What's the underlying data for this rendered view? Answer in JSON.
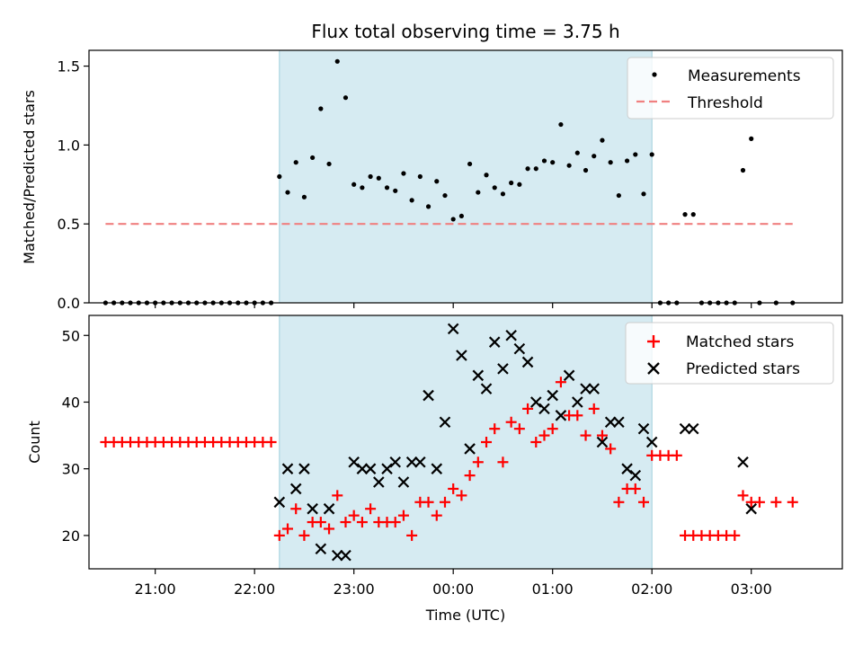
{
  "chart_data": [
    {
      "type": "scatter",
      "title": "Flux total observing time = 3.75 h",
      "xlabel": "",
      "ylabel": "Matched/Predicted stars",
      "ylim": [
        0,
        1.6
      ],
      "yticks": [
        "0.0",
        "0.5",
        "1.0",
        "1.5"
      ],
      "legend_position": "top-right",
      "shaded_interval": [
        "22:15",
        "02:00"
      ],
      "shade_color": "#add8e6",
      "series": [
        {
          "name": "Measurements",
          "marker": "dot",
          "color": "#000000",
          "points": [
            [
              "20:30",
              0
            ],
            [
              "20:35",
              0
            ],
            [
              "20:40",
              0
            ],
            [
              "20:45",
              0
            ],
            [
              "20:50",
              0
            ],
            [
              "20:55",
              0
            ],
            [
              "21:00",
              0
            ],
            [
              "21:05",
              0
            ],
            [
              "21:10",
              0
            ],
            [
              "21:15",
              0
            ],
            [
              "21:20",
              0
            ],
            [
              "21:25",
              0
            ],
            [
              "21:30",
              0
            ],
            [
              "21:35",
              0
            ],
            [
              "21:40",
              0
            ],
            [
              "21:45",
              0
            ],
            [
              "21:50",
              0
            ],
            [
              "21:55",
              0
            ],
            [
              "22:00",
              0
            ],
            [
              "22:05",
              0
            ],
            [
              "22:10",
              0
            ],
            [
              "22:15",
              0.8
            ],
            [
              "22:20",
              0.7
            ],
            [
              "22:25",
              0.89
            ],
            [
              "22:30",
              0.67
            ],
            [
              "22:35",
              0.92
            ],
            [
              "22:40",
              1.23
            ],
            [
              "22:45",
              0.88
            ],
            [
              "22:50",
              1.53
            ],
            [
              "22:55",
              1.3
            ],
            [
              "23:00",
              0.75
            ],
            [
              "23:05",
              0.73
            ],
            [
              "23:10",
              0.8
            ],
            [
              "23:15",
              0.79
            ],
            [
              "23:20",
              0.73
            ],
            [
              "23:25",
              0.71
            ],
            [
              "23:30",
              0.82
            ],
            [
              "23:35",
              0.65
            ],
            [
              "23:40",
              0.8
            ],
            [
              "23:45",
              0.61
            ],
            [
              "23:50",
              0.77
            ],
            [
              "23:55",
              0.68
            ],
            [
              "00:00",
              0.53
            ],
            [
              "00:05",
              0.55
            ],
            [
              "00:10",
              0.88
            ],
            [
              "00:15",
              0.7
            ],
            [
              "00:20",
              0.81
            ],
            [
              "00:25",
              0.73
            ],
            [
              "00:30",
              0.69
            ],
            [
              "00:35",
              0.76
            ],
            [
              "00:40",
              0.75
            ],
            [
              "00:45",
              0.85
            ],
            [
              "00:50",
              0.85
            ],
            [
              "00:55",
              0.9
            ],
            [
              "01:00",
              0.89
            ],
            [
              "01:05",
              1.13
            ],
            [
              "01:10",
              0.87
            ],
            [
              "01:15",
              0.95
            ],
            [
              "01:20",
              0.84
            ],
            [
              "01:25",
              0.93
            ],
            [
              "01:30",
              1.03
            ],
            [
              "01:35",
              0.89
            ],
            [
              "01:40",
              0.68
            ],
            [
              "01:45",
              0.9
            ],
            [
              "01:50",
              0.94
            ],
            [
              "01:55",
              0.69
            ],
            [
              "02:00",
              0.94
            ],
            [
              "02:05",
              0
            ],
            [
              "02:10",
              0
            ],
            [
              "02:15",
              0
            ],
            [
              "02:20",
              0.56
            ],
            [
              "02:25",
              0.56
            ],
            [
              "02:30",
              0
            ],
            [
              "02:35",
              0
            ],
            [
              "02:40",
              0
            ],
            [
              "02:45",
              0
            ],
            [
              "02:50",
              0
            ],
            [
              "02:55",
              0.84
            ],
            [
              "03:00",
              1.04
            ],
            [
              "03:05",
              0
            ],
            [
              "03:15",
              0
            ],
            [
              "03:25",
              0
            ]
          ]
        },
        {
          "name": "Threshold",
          "marker": "dashed-line",
          "color": "#f08080",
          "points": [
            [
              "20:30",
              0.5
            ],
            [
              "03:25",
              0.5
            ]
          ]
        }
      ]
    },
    {
      "type": "scatter",
      "title": "",
      "xlabel": "Time (UTC)",
      "ylabel": "Count",
      "ylim": [
        15,
        53
      ],
      "yticks": [
        "20",
        "30",
        "40",
        "50"
      ],
      "xticks": [
        "21:00",
        "22:00",
        "23:00",
        "00:00",
        "01:00",
        "02:00",
        "03:00"
      ],
      "legend_position": "top-right",
      "series": [
        {
          "name": "Matched stars",
          "marker": "plus",
          "color": "#ff0000",
          "points": [
            [
              "20:30",
              34
            ],
            [
              "20:35",
              34
            ],
            [
              "20:40",
              34
            ],
            [
              "20:45",
              34
            ],
            [
              "20:50",
              34
            ],
            [
              "20:55",
              34
            ],
            [
              "21:00",
              34
            ],
            [
              "21:05",
              34
            ],
            [
              "21:10",
              34
            ],
            [
              "21:15",
              34
            ],
            [
              "21:20",
              34
            ],
            [
              "21:25",
              34
            ],
            [
              "21:30",
              34
            ],
            [
              "21:35",
              34
            ],
            [
              "21:40",
              34
            ],
            [
              "21:45",
              34
            ],
            [
              "21:50",
              34
            ],
            [
              "21:55",
              34
            ],
            [
              "22:00",
              34
            ],
            [
              "22:05",
              34
            ],
            [
              "22:10",
              34
            ],
            [
              "22:15",
              20
            ],
            [
              "22:20",
              21
            ],
            [
              "22:25",
              24
            ],
            [
              "22:30",
              20
            ],
            [
              "22:35",
              22
            ],
            [
              "22:40",
              22
            ],
            [
              "22:45",
              21
            ],
            [
              "22:50",
              26
            ],
            [
              "22:55",
              22
            ],
            [
              "23:00",
              23
            ],
            [
              "23:05",
              22
            ],
            [
              "23:10",
              24
            ],
            [
              "23:15",
              22
            ],
            [
              "23:20",
              22
            ],
            [
              "23:25",
              22
            ],
            [
              "23:30",
              23
            ],
            [
              "23:35",
              20
            ],
            [
              "23:40",
              25
            ],
            [
              "23:45",
              25
            ],
            [
              "23:50",
              23
            ],
            [
              "23:55",
              25
            ],
            [
              "00:00",
              27
            ],
            [
              "00:05",
              26
            ],
            [
              "00:10",
              29
            ],
            [
              "00:15",
              31
            ],
            [
              "00:20",
              34
            ],
            [
              "00:25",
              36
            ],
            [
              "00:30",
              31
            ],
            [
              "00:35",
              37
            ],
            [
              "00:40",
              36
            ],
            [
              "00:45",
              39
            ],
            [
              "00:50",
              34
            ],
            [
              "00:55",
              35
            ],
            [
              "01:00",
              36
            ],
            [
              "01:05",
              43
            ],
            [
              "01:10",
              38
            ],
            [
              "01:15",
              38
            ],
            [
              "01:20",
              35
            ],
            [
              "01:25",
              39
            ],
            [
              "01:30",
              35
            ],
            [
              "01:35",
              33
            ],
            [
              "01:40",
              25
            ],
            [
              "01:45",
              27
            ],
            [
              "01:50",
              27
            ],
            [
              "01:55",
              25
            ],
            [
              "02:00",
              32
            ],
            [
              "02:05",
              32
            ],
            [
              "02:10",
              32
            ],
            [
              "02:15",
              32
            ],
            [
              "02:20",
              20
            ],
            [
              "02:25",
              20
            ],
            [
              "02:30",
              20
            ],
            [
              "02:35",
              20
            ],
            [
              "02:40",
              20
            ],
            [
              "02:45",
              20
            ],
            [
              "02:50",
              20
            ],
            [
              "02:55",
              26
            ],
            [
              "03:00",
              25
            ],
            [
              "03:05",
              25
            ],
            [
              "03:15",
              25
            ],
            [
              "03:25",
              25
            ]
          ]
        },
        {
          "name": "Predicted stars",
          "marker": "cross",
          "color": "#000000",
          "points": [
            [
              "22:15",
              25
            ],
            [
              "22:20",
              30
            ],
            [
              "22:25",
              27
            ],
            [
              "22:30",
              30
            ],
            [
              "22:35",
              24
            ],
            [
              "22:40",
              18
            ],
            [
              "22:45",
              24
            ],
            [
              "22:50",
              17
            ],
            [
              "22:55",
              17
            ],
            [
              "23:00",
              31
            ],
            [
              "23:05",
              30
            ],
            [
              "23:10",
              30
            ],
            [
              "23:15",
              28
            ],
            [
              "23:20",
              30
            ],
            [
              "23:25",
              31
            ],
            [
              "23:30",
              28
            ],
            [
              "23:35",
              31
            ],
            [
              "23:40",
              31
            ],
            [
              "23:45",
              41
            ],
            [
              "23:50",
              30
            ],
            [
              "23:55",
              37
            ],
            [
              "00:00",
              51
            ],
            [
              "00:05",
              47
            ],
            [
              "00:10",
              33
            ],
            [
              "00:15",
              44
            ],
            [
              "00:20",
              42
            ],
            [
              "00:25",
              49
            ],
            [
              "00:30",
              45
            ],
            [
              "00:35",
              50
            ],
            [
              "00:40",
              48
            ],
            [
              "00:45",
              46
            ],
            [
              "00:50",
              40
            ],
            [
              "00:55",
              39
            ],
            [
              "01:00",
              41
            ],
            [
              "01:05",
              38
            ],
            [
              "01:10",
              44
            ],
            [
              "01:15",
              40
            ],
            [
              "01:20",
              42
            ],
            [
              "01:25",
              42
            ],
            [
              "01:30",
              34
            ],
            [
              "01:35",
              37
            ],
            [
              "01:40",
              37
            ],
            [
              "01:45",
              30
            ],
            [
              "01:50",
              29
            ],
            [
              "01:55",
              36
            ],
            [
              "02:00",
              34
            ],
            [
              "02:20",
              36
            ],
            [
              "02:25",
              36
            ],
            [
              "02:55",
              31
            ],
            [
              "03:00",
              24
            ]
          ]
        }
      ]
    }
  ]
}
